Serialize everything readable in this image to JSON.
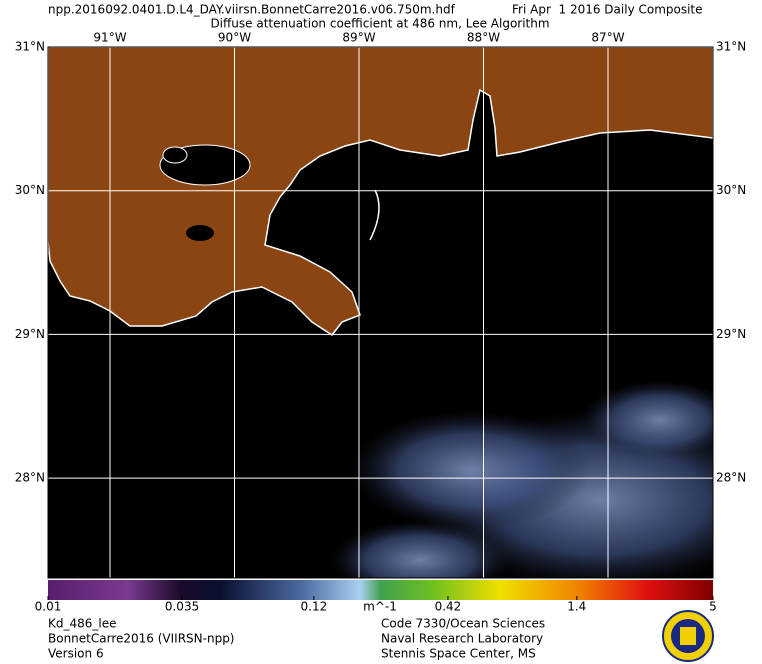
{
  "header": {
    "filename": "npp.2016092.0401.D.L4_DAY.viirsn.BonnetCarre2016.v06.750m.hdf",
    "date": "Fri Apr  1 2016 Daily Composite",
    "title": "Diffuse attenuation coefficient at 486 nm, Lee Algorithm"
  },
  "map": {
    "lon_ticks": [
      {
        "value": -91,
        "label": "91°W"
      },
      {
        "value": -90,
        "label": "90°W"
      },
      {
        "value": -89,
        "label": "89°W"
      },
      {
        "value": -88,
        "label": "88°W"
      },
      {
        "value": -87,
        "label": "87°W"
      }
    ],
    "lat_ticks": [
      {
        "value": 31,
        "label": "31°N"
      },
      {
        "value": 30,
        "label": "30°N"
      },
      {
        "value": 29,
        "label": "29°N"
      },
      {
        "value": 28,
        "label": "28°N"
      }
    ]
  },
  "colorbar": {
    "ticks": [
      0.01,
      0.035,
      0.12,
      0.42,
      1.4,
      5
    ],
    "unit": "m^-1",
    "log": true
  },
  "footer": {
    "left": [
      "Kd_486_lee",
      "BonnetCarre2016 (VIIRSN-npp)",
      "Version 6"
    ],
    "right": [
      "Code 7330/Ocean Sciences",
      "Naval Research Laboratory",
      "Stennis Space Center, MS"
    ]
  }
}
